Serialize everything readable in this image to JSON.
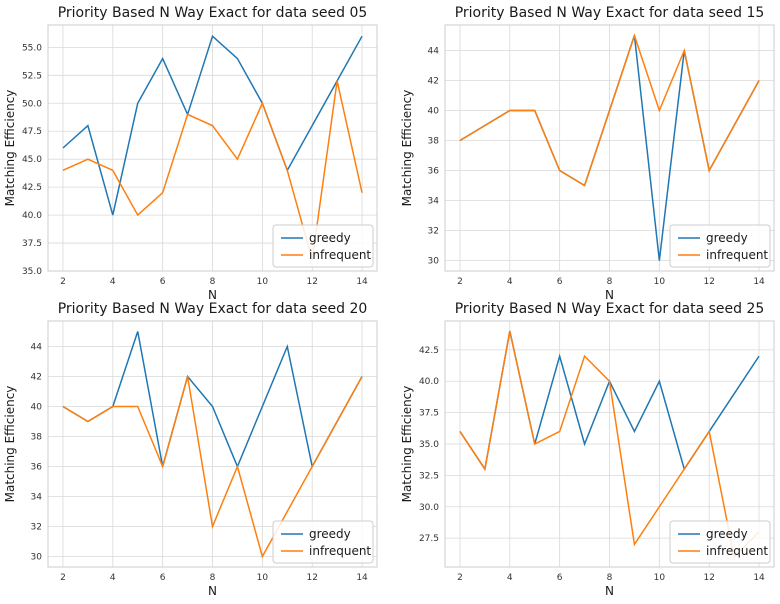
{
  "colors": {
    "greedy": "#1f77b4",
    "infrequent": "#ff7f0e",
    "grid": "#d9d9d9",
    "frame": "#cccccc"
  },
  "chart_data": [
    {
      "type": "line",
      "title": "Priority Based N Way Exact for data seed 05",
      "xlabel": "N",
      "ylabel": "Matching Efficiency",
      "x": [
        2,
        3,
        4,
        5,
        6,
        7,
        8,
        9,
        10,
        11,
        12,
        13,
        14
      ],
      "xlim": [
        1.4,
        14.6
      ],
      "ylim": [
        35.0,
        57.0
      ],
      "xticks": [
        "2",
        "4",
        "6",
        "8",
        "10",
        "12",
        "14"
      ],
      "xtick_values": [
        2,
        4,
        6,
        8,
        10,
        12,
        14
      ],
      "yticks": [
        "35.0",
        "37.5",
        "40.0",
        "42.5",
        "45.0",
        "47.5",
        "50.0",
        "52.5",
        "55.0"
      ],
      "ytick_values": [
        35.0,
        37.5,
        40.0,
        42.5,
        45.0,
        47.5,
        50.0,
        52.5,
        55.0
      ],
      "grid": true,
      "legend_position": "lower-right",
      "series": [
        {
          "name": "greedy",
          "values": [
            46,
            48,
            40,
            50,
            54,
            49,
            56,
            54,
            50,
            44,
            48,
            52,
            56
          ]
        },
        {
          "name": "infrequent",
          "values": [
            44,
            45,
            44,
            40,
            42,
            49,
            48,
            45,
            50,
            44,
            36,
            52,
            42
          ]
        }
      ]
    },
    {
      "type": "line",
      "title": "Priority Based N Way Exact for data seed 15",
      "xlabel": "N",
      "ylabel": "Matching Efficiency",
      "x": [
        2,
        3,
        4,
        5,
        6,
        7,
        8,
        9,
        10,
        11,
        12,
        13,
        14
      ],
      "xlim": [
        1.4,
        14.6
      ],
      "ylim": [
        29.3,
        45.7
      ],
      "xticks": [
        "2",
        "4",
        "6",
        "8",
        "10",
        "12",
        "14"
      ],
      "xtick_values": [
        2,
        4,
        6,
        8,
        10,
        12,
        14
      ],
      "yticks": [
        "30",
        "32",
        "34",
        "36",
        "38",
        "40",
        "42",
        "44"
      ],
      "ytick_values": [
        30,
        32,
        34,
        36,
        38,
        40,
        42,
        44
      ],
      "grid": true,
      "legend_position": "lower-right",
      "series": [
        {
          "name": "greedy",
          "values": [
            38,
            39,
            40,
            40,
            36,
            35,
            40,
            45,
            30,
            44,
            36,
            39,
            42
          ]
        },
        {
          "name": "infrequent",
          "values": [
            38,
            39,
            40,
            40,
            36,
            35,
            40,
            45,
            40,
            44,
            36,
            39,
            42
          ]
        }
      ]
    },
    {
      "type": "line",
      "title": "Priority Based N Way Exact for data seed 20",
      "xlabel": "N",
      "ylabel": "Matching Efficiency",
      "x": [
        2,
        3,
        4,
        5,
        6,
        7,
        8,
        9,
        10,
        11,
        12,
        13,
        14
      ],
      "xlim": [
        1.4,
        14.6
      ],
      "ylim": [
        29.3,
        45.7
      ],
      "xticks": [
        "2",
        "4",
        "6",
        "8",
        "10",
        "12",
        "14"
      ],
      "xtick_values": [
        2,
        4,
        6,
        8,
        10,
        12,
        14
      ],
      "yticks": [
        "30",
        "32",
        "34",
        "36",
        "38",
        "40",
        "42",
        "44"
      ],
      "ytick_values": [
        30,
        32,
        34,
        36,
        38,
        40,
        42,
        44
      ],
      "grid": true,
      "legend_position": "lower-right",
      "series": [
        {
          "name": "greedy",
          "values": [
            40,
            39,
            40,
            45,
            36,
            42,
            40,
            36,
            40,
            44,
            36,
            39,
            42
          ]
        },
        {
          "name": "infrequent",
          "values": [
            40,
            39,
            40,
            40,
            36,
            42,
            32,
            36,
            30,
            33,
            36,
            39,
            42
          ]
        }
      ]
    },
    {
      "type": "line",
      "title": "Priority Based N Way Exact for data seed 25",
      "xlabel": "N",
      "ylabel": "Matching Efficiency",
      "x": [
        2,
        3,
        4,
        5,
        6,
        7,
        8,
        9,
        10,
        11,
        12,
        13,
        14
      ],
      "xlim": [
        1.4,
        14.6
      ],
      "ylim": [
        25.2,
        44.8
      ],
      "xticks": [
        "2",
        "4",
        "6",
        "8",
        "10",
        "12",
        "14"
      ],
      "xtick_values": [
        2,
        4,
        6,
        8,
        10,
        12,
        14
      ],
      "yticks": [
        "27.5",
        "30.0",
        "32.5",
        "35.0",
        "37.5",
        "40.0",
        "42.5"
      ],
      "ytick_values": [
        27.5,
        30.0,
        32.5,
        35.0,
        37.5,
        40.0,
        42.5
      ],
      "grid": true,
      "legend_position": "lower-right",
      "series": [
        {
          "name": "greedy",
          "values": [
            36,
            33,
            44,
            35,
            42,
            35,
            40,
            36,
            40,
            33,
            36,
            39,
            42
          ]
        },
        {
          "name": "infrequent",
          "values": [
            36,
            33,
            44,
            35,
            36,
            42,
            40,
            27,
            30,
            33,
            36,
            26,
            28
          ]
        }
      ]
    }
  ]
}
